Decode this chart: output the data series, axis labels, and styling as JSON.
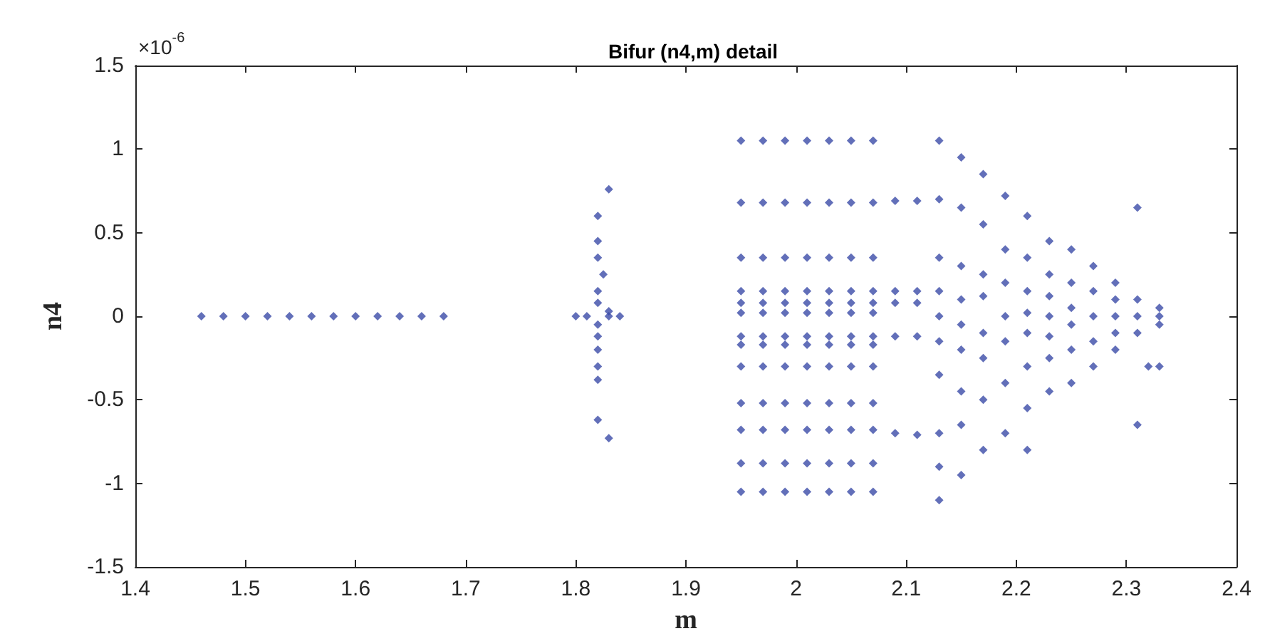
{
  "chart_data": {
    "type": "scatter",
    "title": "Bifur (n4,m) detail",
    "xlabel": "m",
    "ylabel": "n4",
    "annotations": [
      "×10$^{-6}$"
    ],
    "xlim": [
      1.4,
      2.4
    ],
    "xticks": [
      1.4,
      1.5,
      1.6,
      1.7,
      1.8,
      1.9,
      2,
      2.1,
      2.2,
      2.3,
      2.4
    ],
    "ylim": [
      -1.5,
      1.5
    ],
    "yticks": [
      -1.5,
      -1,
      -0.5,
      0,
      0.5,
      1,
      1.5
    ],
    "grid": false,
    "marker": "diamond",
    "series": [
      {
        "color": "#3b4ba8",
        "x": [
          1.46,
          1.48,
          1.5,
          1.52,
          1.54,
          1.56,
          1.58,
          1.6,
          1.62,
          1.64,
          1.66,
          1.68,
          1.83,
          1.82,
          1.82,
          1.82,
          1.825,
          1.82,
          1.82,
          1.83,
          1.8,
          1.81,
          1.83,
          1.84,
          1.82,
          1.82,
          1.82,
          1.82,
          1.82,
          1.82,
          1.83,
          1.95,
          1.95,
          1.95,
          1.95,
          1.95,
          1.95,
          1.95,
          1.95,
          1.95,
          1.95,
          1.95,
          1.95,
          1.95,
          1.97,
          1.97,
          1.97,
          1.97,
          1.97,
          1.97,
          1.97,
          1.97,
          1.97,
          1.97,
          1.97,
          1.97,
          1.97,
          1.99,
          1.99,
          1.99,
          1.99,
          1.99,
          1.99,
          1.99,
          1.99,
          1.99,
          1.99,
          1.99,
          1.99,
          1.99,
          2.01,
          2.01,
          2.01,
          2.01,
          2.01,
          2.01,
          2.01,
          2.01,
          2.01,
          2.01,
          2.01,
          2.01,
          2.01,
          2.03,
          2.03,
          2.03,
          2.03,
          2.03,
          2.03,
          2.03,
          2.03,
          2.03,
          2.03,
          2.03,
          2.03,
          2.03,
          2.05,
          2.05,
          2.05,
          2.05,
          2.05,
          2.05,
          2.05,
          2.05,
          2.05,
          2.05,
          2.05,
          2.05,
          2.05,
          2.07,
          2.07,
          2.07,
          2.07,
          2.07,
          2.07,
          2.07,
          2.07,
          2.07,
          2.07,
          2.07,
          2.07,
          2.07,
          2.09,
          2.11,
          2.09,
          2.11,
          2.09,
          2.11,
          2.09,
          2.11,
          2.09,
          2.11,
          2.13,
          2.13,
          2.13,
          2.13,
          2.13,
          2.13,
          2.13,
          2.13,
          2.13,
          2.13,
          2.15,
          2.15,
          2.15,
          2.15,
          2.15,
          2.15,
          2.15,
          2.15,
          2.15,
          2.17,
          2.17,
          2.17,
          2.17,
          2.17,
          2.17,
          2.17,
          2.17,
          2.19,
          2.19,
          2.19,
          2.19,
          2.19,
          2.19,
          2.19,
          2.21,
          2.21,
          2.21,
          2.21,
          2.21,
          2.21,
          2.21,
          2.21,
          2.23,
          2.23,
          2.23,
          2.23,
          2.23,
          2.23,
          2.23,
          2.25,
          2.25,
          2.25,
          2.25,
          2.25,
          2.25,
          2.27,
          2.27,
          2.27,
          2.27,
          2.27,
          2.29,
          2.29,
          2.29,
          2.29,
          2.29,
          2.31,
          2.31,
          2.31,
          2.31,
          2.31,
          2.32,
          2.33,
          2.33,
          2.33,
          2.33
        ],
        "values": [
          0,
          0,
          0,
          0,
          0,
          0,
          0,
          0,
          0,
          0,
          0,
          0,
          0.76,
          0.6,
          0.45,
          0.35,
          0.25,
          0.15,
          0.08,
          0.03,
          0,
          0,
          0,
          0,
          -0.05,
          -0.12,
          -0.2,
          -0.3,
          -0.38,
          -0.62,
          -0.73,
          1.05,
          0.68,
          0.35,
          0.15,
          0.08,
          0.02,
          -0.12,
          -0.17,
          -0.3,
          -0.52,
          -0.68,
          -0.88,
          -1.05,
          1.05,
          0.68,
          0.35,
          0.15,
          0.08,
          0.02,
          -0.12,
          -0.17,
          -0.3,
          -0.52,
          -0.68,
          -0.88,
          -1.05,
          1.05,
          0.68,
          0.35,
          0.15,
          0.08,
          0.02,
          -0.12,
          -0.17,
          -0.3,
          -0.52,
          -0.68,
          -0.88,
          -1.05,
          1.05,
          0.68,
          0.35,
          0.15,
          0.08,
          0.02,
          -0.12,
          -0.17,
          -0.3,
          -0.52,
          -0.68,
          -0.88,
          -1.05,
          1.05,
          0.68,
          0.35,
          0.15,
          0.08,
          0.02,
          -0.12,
          -0.17,
          -0.3,
          -0.52,
          -0.68,
          -0.88,
          -1.05,
          1.05,
          0.68,
          0.35,
          0.15,
          0.08,
          0.02,
          -0.12,
          -0.17,
          -0.3,
          -0.52,
          -0.68,
          -0.88,
          -1.05,
          1.05,
          0.68,
          0.35,
          0.15,
          0.08,
          0.02,
          -0.12,
          -0.17,
          -0.3,
          -0.52,
          -0.68,
          -0.88,
          -1.05,
          0.69,
          0.69,
          -0.7,
          -0.71,
          0.15,
          0.15,
          -0.12,
          -0.12,
          0.08,
          0.08,
          1.05,
          0.7,
          0.35,
          0.15,
          0,
          -0.15,
          -0.35,
          -0.7,
          -0.9,
          -1.1,
          0.95,
          0.65,
          0.3,
          0.1,
          -0.05,
          -0.2,
          -0.45,
          -0.65,
          -0.95,
          0.85,
          0.55,
          0.25,
          0.12,
          -0.1,
          -0.25,
          -0.5,
          -0.8,
          0.72,
          0.4,
          0.2,
          0,
          -0.15,
          -0.4,
          -0.7,
          0.6,
          0.35,
          0.15,
          0.02,
          -0.1,
          -0.3,
          -0.55,
          -0.8,
          0.45,
          0.25,
          0.12,
          0,
          -0.12,
          -0.25,
          -0.45,
          0.4,
          0.2,
          0.05,
          -0.05,
          -0.2,
          -0.4,
          0.3,
          0.15,
          0,
          -0.15,
          -0.3,
          0.2,
          0.1,
          0,
          -0.1,
          -0.2,
          0.65,
          0.1,
          0,
          -0.1,
          -0.65,
          -0.3,
          0.05,
          0,
          -0.05,
          -0.3
        ]
      }
    ]
  }
}
